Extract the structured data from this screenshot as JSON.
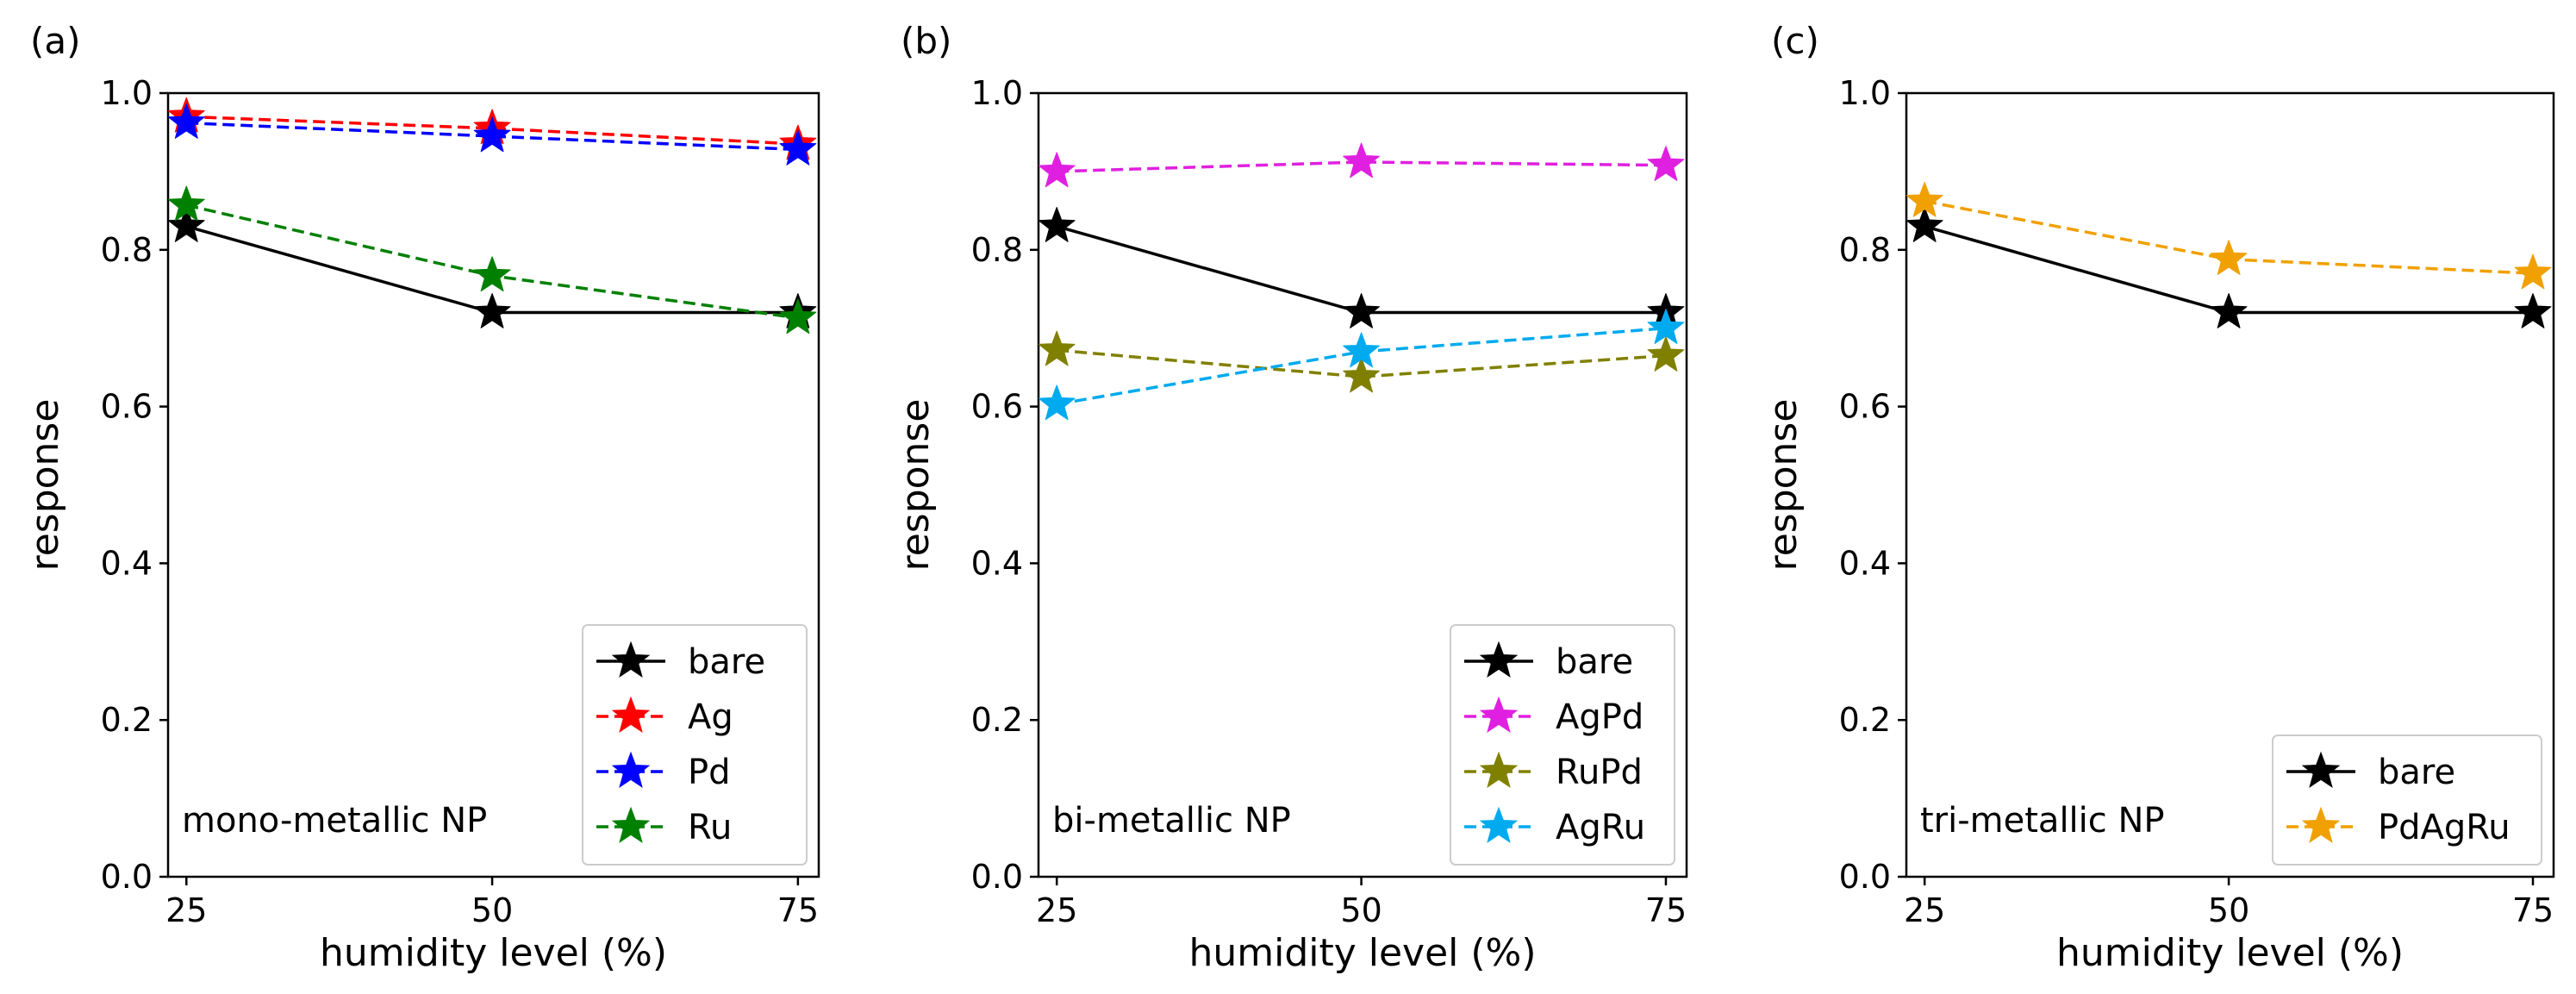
{
  "chart_data": [
    {
      "type": "line",
      "panel_label": "(a)",
      "annotation": "mono-metallic NP",
      "xlabel": "humidity level (%)",
      "ylabel": "response",
      "x": [
        25,
        50,
        75
      ],
      "x_ticks": [
        "25",
        "50",
        "75"
      ],
      "ylim": [
        0,
        1.0
      ],
      "y_ticks": [
        "0.0",
        "0.2",
        "0.4",
        "0.6",
        "0.8",
        "1.0"
      ],
      "grid": false,
      "legend_position": "bottom-right",
      "series": [
        {
          "name": "bare",
          "values": [
            0.83,
            0.72,
            0.72
          ],
          "color": "#000000",
          "dashed": false
        },
        {
          "name": "Ag",
          "values": [
            0.97,
            0.955,
            0.935
          ],
          "color": "#ff0000",
          "dashed": true
        },
        {
          "name": "Pd",
          "values": [
            0.962,
            0.945,
            0.928
          ],
          "color": "#0000ff",
          "dashed": true
        },
        {
          "name": "Ru",
          "values": [
            0.857,
            0.767,
            0.713
          ],
          "color": "#008000",
          "dashed": true
        }
      ]
    },
    {
      "type": "line",
      "panel_label": "(b)",
      "annotation": "bi-metallic NP",
      "xlabel": "humidity level (%)",
      "ylabel": "response",
      "x": [
        25,
        50,
        75
      ],
      "x_ticks": [
        "25",
        "50",
        "75"
      ],
      "ylim": [
        0,
        1.0
      ],
      "y_ticks": [
        "0.0",
        "0.2",
        "0.4",
        "0.6",
        "0.8",
        "1.0"
      ],
      "grid": false,
      "legend_position": "bottom-right",
      "series": [
        {
          "name": "bare",
          "values": [
            0.83,
            0.72,
            0.72
          ],
          "color": "#000000",
          "dashed": false
        },
        {
          "name": "AgPd",
          "values": [
            0.9,
            0.912,
            0.908
          ],
          "color": "#e020e0",
          "dashed": true
        },
        {
          "name": "RuPd",
          "values": [
            0.672,
            0.638,
            0.665
          ],
          "color": "#808000",
          "dashed": true
        },
        {
          "name": "AgRu",
          "values": [
            0.603,
            0.67,
            0.7
          ],
          "color": "#00aaee",
          "dashed": true
        }
      ]
    },
    {
      "type": "line",
      "panel_label": "(c)",
      "annotation": "tri-metallic NP",
      "xlabel": "humidity level (%)",
      "ylabel": "response",
      "x": [
        25,
        50,
        75
      ],
      "x_ticks": [
        "25",
        "50",
        "75"
      ],
      "ylim": [
        0,
        1.0
      ],
      "y_ticks": [
        "0.0",
        "0.2",
        "0.4",
        "0.6",
        "0.8",
        "1.0"
      ],
      "grid": false,
      "legend_position": "bottom-right",
      "series": [
        {
          "name": "bare",
          "values": [
            0.83,
            0.72,
            0.72
          ],
          "color": "#000000",
          "dashed": false
        },
        {
          "name": "PdAgRu",
          "values": [
            0.862,
            0.788,
            0.77
          ],
          "color": "#f0a000",
          "dashed": true
        }
      ]
    }
  ]
}
